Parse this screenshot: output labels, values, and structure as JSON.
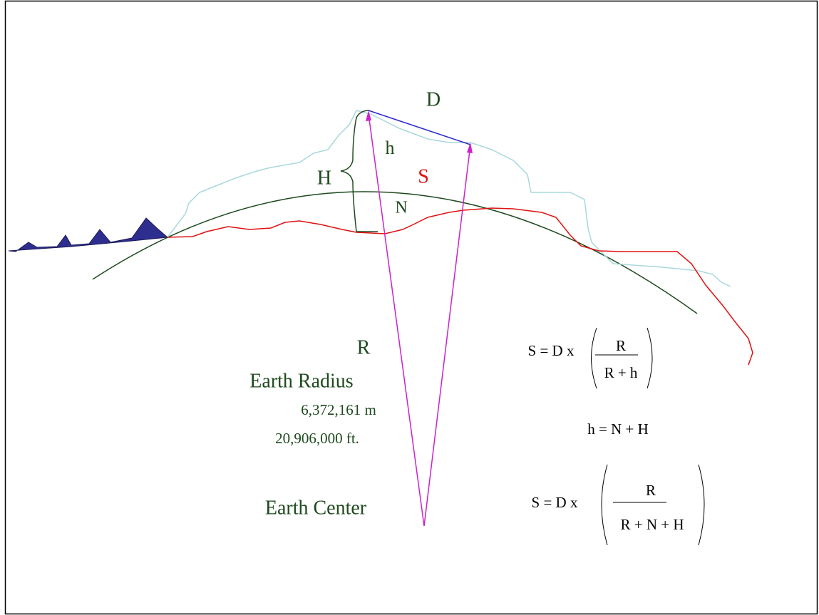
{
  "labels": {
    "distance": "D",
    "height": "h",
    "orthometric": "H",
    "surface": "S",
    "geoid": "N"
  },
  "radius": {
    "symbol": "R",
    "title": "Earth Radius",
    "meters": "6,372,161 m",
    "feet": "20,906,000 ft."
  },
  "center": "Earth Center",
  "formulas": [
    {
      "lhs": "S = D x",
      "numerator": "R",
      "denominator": "R + h"
    },
    {
      "text": "h = N + H"
    },
    {
      "lhs": "S = D x",
      "numerator": "R",
      "denominator": "R + N + H"
    }
  ]
}
